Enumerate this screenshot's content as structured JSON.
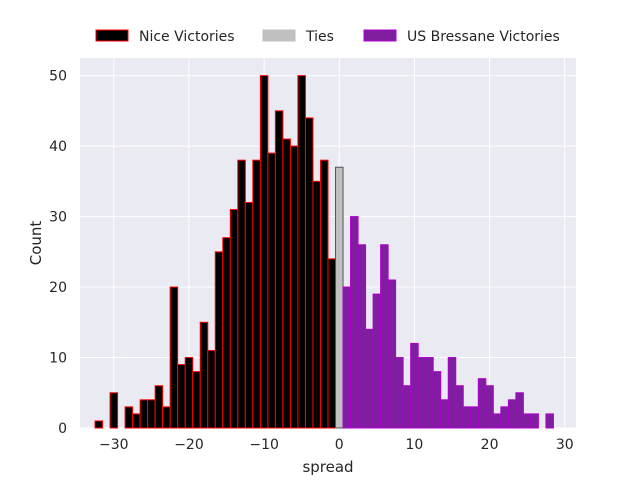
{
  "chart_data": {
    "type": "bar",
    "xlabel": "spread",
    "ylabel": "Count",
    "xlim": [
      -34.5,
      31.5
    ],
    "ylim": [
      0,
      52.5
    ],
    "xticks": [
      -30,
      -20,
      -10,
      0,
      10,
      20,
      30
    ],
    "yticks": [
      0,
      10,
      20,
      30,
      40,
      50
    ],
    "bin_width": 1,
    "grid": true,
    "legend_position": "top-center",
    "colors": {
      "background": "#eaeaf2",
      "grid": "#ffffff",
      "nice_fill": "#000000",
      "nice_edge": "#ff0000",
      "ties_fill": "#c0c0c0",
      "ties_edge": "#555555",
      "bressane_fill": "#7f1e9e",
      "bressane_edge": "#b000d0"
    },
    "series": [
      {
        "name": "Nice Victories",
        "key": "nice",
        "x": [
          -32,
          -31,
          -30,
          -29,
          -28,
          -27,
          -26,
          -25,
          -24,
          -23,
          -22,
          -21,
          -20,
          -19,
          -18,
          -17,
          -16,
          -15,
          -14,
          -13,
          -12,
          -11,
          -10,
          -9,
          -8,
          -7,
          -6,
          -5,
          -4,
          -3,
          -2,
          -1
        ],
        "values": [
          1,
          0,
          5,
          0,
          3,
          2,
          4,
          4,
          6,
          3,
          20,
          9,
          10,
          8,
          15,
          11,
          25,
          27,
          31,
          38,
          32,
          38,
          50,
          39,
          45,
          41,
          40,
          50,
          44,
          35,
          38,
          24
        ]
      },
      {
        "name": "Ties",
        "key": "ties",
        "x": [
          0
        ],
        "values": [
          37
        ]
      },
      {
        "name": "US Bressane Victories",
        "key": "bressane",
        "x": [
          1,
          2,
          3,
          4,
          5,
          6,
          7,
          8,
          9,
          10,
          11,
          12,
          13,
          14,
          15,
          16,
          17,
          18,
          19,
          20,
          21,
          22,
          23,
          24,
          25,
          26,
          27,
          28
        ],
        "values": [
          20,
          30,
          26,
          14,
          19,
          26,
          21,
          10,
          6,
          12,
          10,
          10,
          8,
          4,
          10,
          6,
          3,
          3,
          7,
          6,
          2,
          3,
          4,
          5,
          2,
          2,
          0,
          2
        ]
      }
    ]
  }
}
